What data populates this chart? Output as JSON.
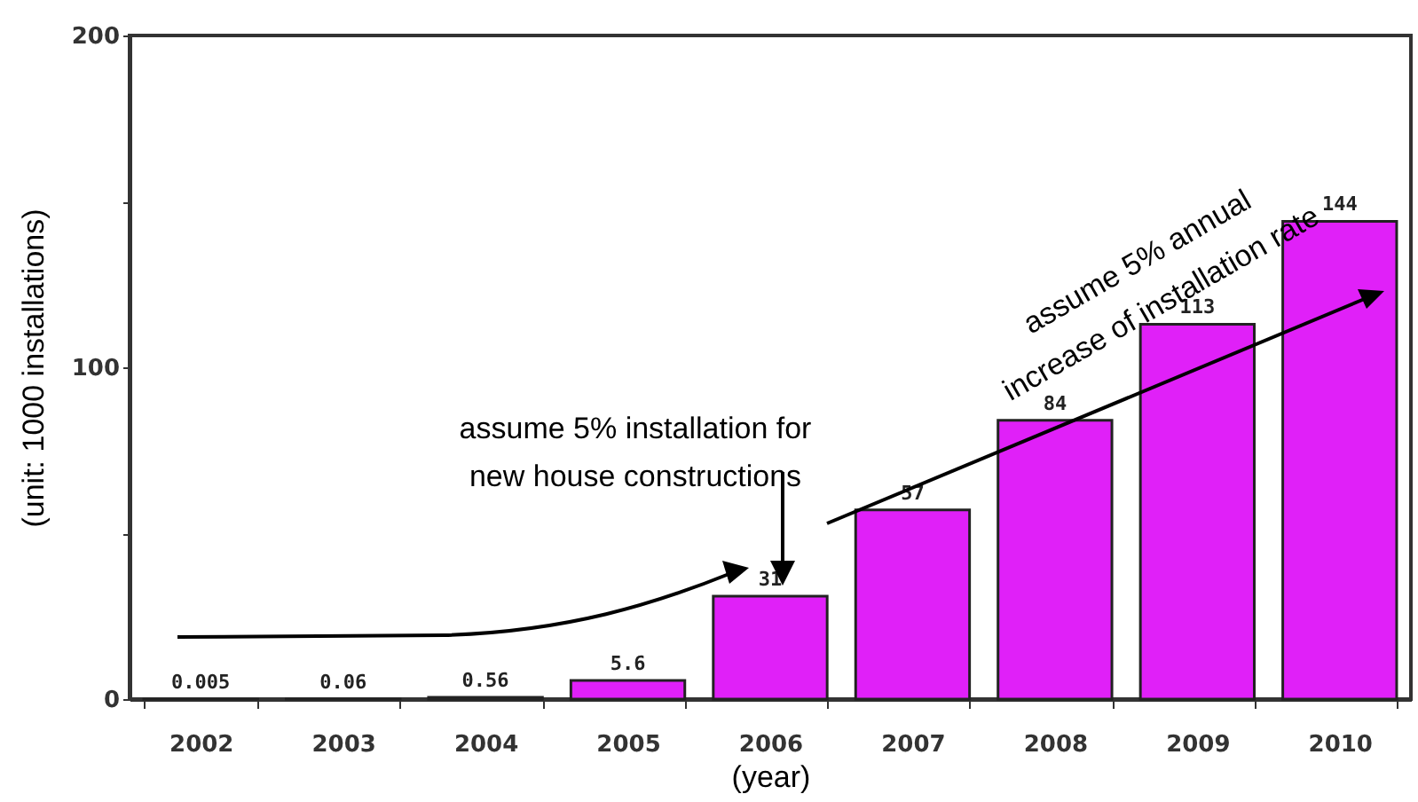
{
  "chart_data": {
    "type": "bar",
    "xlabel": "(year)",
    "ylabel": "(unit: 1000 installations)",
    "categories": [
      "2002",
      "2003",
      "2004",
      "2005",
      "2006",
      "2007",
      "2008",
      "2009",
      "2010"
    ],
    "values": [
      0.005,
      0.06,
      0.56,
      5.6,
      31,
      57,
      84,
      113,
      144
    ],
    "color": "#e020f8",
    "ylim": [
      0,
      200
    ],
    "yticks": [
      0,
      {
        "value": 50,
        "label": null
      },
      100,
      {
        "value": 150,
        "label": null
      },
      200
    ],
    "data_labels": true,
    "grid": false,
    "annotations": [
      "assume 5% installation for\nnew house constructions",
      "assume 5% annual\nincrease of installation rate"
    ]
  }
}
